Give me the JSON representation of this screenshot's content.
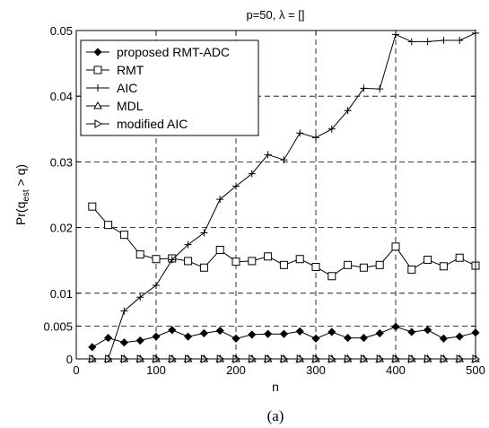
{
  "chart_data": {
    "type": "line",
    "title": "p=50, λ = []",
    "xlabel": "n",
    "ylabel": "Pr(q_est > q)",
    "ylabel_main": "Pr(q",
    "ylabel_sub": "est",
    "ylabel_tail": " > q)",
    "caption": "(a)",
    "xlim": [
      0,
      500
    ],
    "ylim": [
      0,
      0.05
    ],
    "xticks": [
      0,
      100,
      200,
      300,
      400,
      500
    ],
    "xtick_labels": [
      "0",
      "100",
      "200",
      "300",
      "400",
      "500"
    ],
    "yticks": [
      0,
      0.005,
      0.01,
      0.02,
      0.03,
      0.04,
      0.05
    ],
    "ytick_labels": [
      "0",
      "0.005",
      "0.01",
      "0.02",
      "0.03",
      "0.04",
      "0.05"
    ],
    "grid": true,
    "legend_position": "top-left",
    "x": [
      20,
      40,
      60,
      80,
      100,
      120,
      140,
      160,
      180,
      200,
      220,
      240,
      260,
      280,
      300,
      320,
      340,
      360,
      380,
      400,
      420,
      440,
      460,
      480,
      500
    ],
    "series": [
      {
        "name": "proposed RMT-ADC",
        "marker": "diamond",
        "values": [
          0.0018,
          0.0032,
          0.0025,
          0.0028,
          0.0034,
          0.0044,
          0.0034,
          0.0039,
          0.0043,
          0.0031,
          0.0037,
          0.0038,
          0.0038,
          0.0042,
          0.0031,
          0.0041,
          0.0032,
          0.0032,
          0.0039,
          0.0049,
          0.0041,
          0.0044,
          0.0031,
          0.0034,
          0.004
        ]
      },
      {
        "name": "RMT",
        "marker": "square",
        "values": [
          0.0232,
          0.0204,
          0.0189,
          0.0159,
          0.0152,
          0.0153,
          0.0149,
          0.0139,
          0.0166,
          0.0148,
          0.0149,
          0.0156,
          0.0143,
          0.0152,
          0.014,
          0.0126,
          0.0143,
          0.0139,
          0.0143,
          0.0171,
          0.0136,
          0.0151,
          0.0141,
          0.0154,
          0.0142
        ]
      },
      {
        "name": "AIC",
        "marker": "plus",
        "values": [
          0.0,
          0.0,
          0.0073,
          0.0094,
          0.0112,
          0.0151,
          0.0174,
          0.0192,
          0.0243,
          0.0263,
          0.0282,
          0.0311,
          0.0303,
          0.0344,
          0.0337,
          0.035,
          0.0378,
          0.0412,
          0.0411,
          0.0494,
          0.0483,
          0.0483,
          0.0485,
          0.0485,
          0.0496
        ]
      },
      {
        "name": "MDL",
        "marker": "triangle-up",
        "values": [
          0,
          0,
          0,
          0,
          0,
          0,
          0,
          0,
          0,
          0,
          0,
          0,
          0,
          0,
          0,
          0,
          0,
          0,
          0,
          0,
          0,
          0,
          0,
          0,
          0
        ]
      },
      {
        "name": "modified AIC",
        "marker": "triangle-right",
        "values": [
          0,
          0,
          0,
          0,
          0,
          0,
          0,
          0,
          0,
          0,
          0,
          0,
          0,
          0,
          0,
          0,
          0,
          0,
          0,
          0,
          0,
          0,
          0,
          0,
          0
        ]
      }
    ]
  }
}
